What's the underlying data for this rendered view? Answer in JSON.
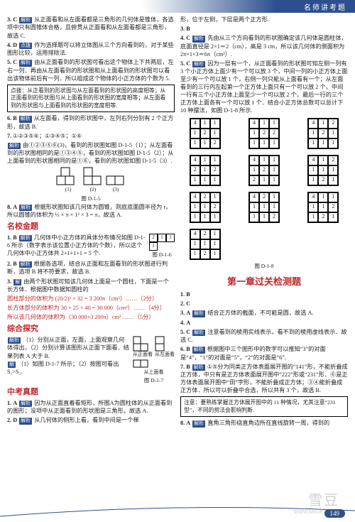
{
  "header": "名师讲考题",
  "page_number": "149",
  "colors": {
    "accent": "#2d4f8f",
    "red": "#c1272d"
  },
  "tags": {
    "analysis": "解析",
    "idea": "点拨",
    "answer": "解"
  },
  "left": {
    "items": [
      {
        "n": "3.",
        "a": "C",
        "text": "从正面看和从左面看都是三角形的几何体是锥体，各选项中只有圆锥体合格，且俯贯从正面看和从左面看都是三角形，故选 C."
      },
      {
        "n": "4.",
        "a": "D",
        "text": "作为选择题可以将立体图从三个方向看到的，对于某些图形比较，运用排除法."
      },
      {
        "n": "5.",
        "a": "C",
        "text": "由从正面看到的形状图可看出这个物体上下共两层，左右一列．再由从左面看到的形状图和从上面看到的形状图可以看出该物体前后有一列．所以组成这个物体的小正方体的个数为 5."
      }
    ],
    "box1": "点拨：从正看到的形状图与从左面看到的形状图的高度相等；从正面看到的形状图与从上面看到的形状图的宽度相等；从左面看到的形状图与上面看到的形状图的宽度相等.",
    "items2": [
      {
        "n": "6.",
        "a": "B",
        "text": "从左面看，得到的形状图中，左列右列分别有 2 个正方形，故选 B."
      },
      {
        "n": "7.",
        "a": "",
        "text": "①②③⑤⑥；①③④⑤；①⑥"
      },
      {
        "pre": "解析",
        "text": "由①②③⑤⑥(3)，看到的形状图如图 D-1-5（1）；从左面看到的形状图相同的是①③④⑤，看到的形状图如图 D-1-5（2）；从上面看到的形状图相同的是①⑥，看到的形状图如图 D-1-5（3）."
      }
    ],
    "fig15": {
      "caption": "图 D-1-5",
      "sub": [
        "(1)",
        "(2)",
        "(3)"
      ]
    },
    "items3": [
      {
        "n": "8.",
        "a": "A",
        "text": "根据形状图知该几何体为圆锥，则底底面圆半径为 r，所以圆锥的体积为 ⅓ × π × 1² × 3 = π，故选 A."
      }
    ],
    "sec1_title": "名校金题",
    "sec1": [
      {
        "n": "1.",
        "a": "B",
        "text": "几何体中小正方体的具体分布情况如图 D-1-6 所示（数字表示该位置小正方体的个数），所以这个几何体中小正方体共 2+1+1+1 = 5 个."
      },
      {
        "fig16_caption": "图 D-1-6",
        "fig16_grid": [
          [
            "2",
            "1",
            "1"
          ],
          [
            "1",
            "",
            ""
          ]
        ]
      },
      {
        "n": "2.",
        "a": "B",
        "text": "根据各选项，结合从正面和左面看到的形状图进行判断，选项 B 将不符要求，故选 B."
      },
      {
        "n": "3.",
        "a": "",
        "pre": "解",
        "text": "由两个形状图可知该几何体上面是一个圆柱，下面是一个长方体．根据图中数据知圆柱的"
      },
      {
        "calc1": "圆柱部分的体积为 (20/2)² × 32 = 3 200π（cm³）……（2分）"
      },
      {
        "calc2": "长方体部分的体积为 30 × 25 × 40 = 30 000（cm³）……（4分）"
      },
      {
        "calc3": "所以该几何体的体积为（30 000+3 200π）cm³ ……（5分）"
      }
    ],
    "sec2_title": "综合探究",
    "sec2": [
      {
        "pre": "解析",
        "text": "（1）分别从正面，左面，上面观察几何体得出，（2）分别计算该图形从正面下面看．结果列表 A 大于 B."
      },
      {
        "pre": "解",
        "text": "（1）如图 D-1-7 所示；（2）按图可看出 S₁>S₂."
      },
      {
        "fig17_caption": "图 D-1-7",
        "views": [
          "从正面看",
          "从左面看",
          "从上面看"
        ]
      }
    ],
    "sec3_title": "中考真题",
    "sec3": [
      {
        "n": "1.",
        "a": "A",
        "text": "因为从正面直着看矩形，所图A为圆柱体的从正面看到的图形；没项中从正面看到的形状图是三角形，故选 A."
      },
      {
        "n": "2.",
        "a": "D",
        "text": "从几何体的侧形上看，看到中间是一个梯"
      }
    ]
  },
  "right": {
    "top_lines": [
      "形，位于左侧，下层是两个正方形.",
      {
        "n": "3.",
        "a": "B"
      },
      {
        "n": "4.",
        "a": "C",
        "text": "先由从三个方向看到的形状图确定该几何体是圆柱体，底面直径是 2×1＝2（cm），高是 3 cm，所以该几何体的侧面积为 2π×1×3＝6π（cm²）."
      },
      {
        "n": "5.",
        "a": "C",
        "text": "因为一层有一个，从正面看到的形状图可知左侧一列有 3 个小正方体上面少有一个可以放 3 个，中间一列的小正方体上面至少有一个可以放 1 个，右侧一列只能从上面看有一个；从左面看到的三行内左起第一个正方体上面只有一个可以放 2 个，中间一行有三个小正方体上面至少一个可以放 2 个，最后一行的三个正方体上面各有一个可以放 1 个．结合小正方体总数可以总计下 10 种摆法，如图 D-1-8 所示."
      }
    ],
    "grids": [
      [
        [
          "4",
          "1",
          "1"
        ],
        [
          "1",
          "2",
          "1"
        ],
        [
          "1",
          "1",
          "2"
        ]
      ],
      [
        [
          "4",
          "1",
          "1"
        ],
        [
          "1",
          "2",
          "2"
        ],
        [
          "1",
          "1",
          "1"
        ]
      ],
      [
        [
          "4",
          "1",
          "2"
        ],
        [
          "1",
          "2",
          "1"
        ],
        [
          "1",
          "1",
          "1"
        ]
      ],
      [
        [
          "4",
          "1",
          "1"
        ],
        [
          "2",
          "1",
          "2"
        ],
        [
          "1",
          "1",
          "1"
        ]
      ],
      [
        [
          "4",
          "1",
          "1"
        ],
        [
          "1",
          "2",
          "1"
        ],
        [
          "2",
          "1",
          "1"
        ]
      ],
      [
        [
          "4",
          "1",
          "2"
        ],
        [
          "1",
          "1",
          "1"
        ],
        [
          "1",
          "2",
          "1"
        ]
      ],
      [
        [
          "4",
          "2",
          "1"
        ],
        [
          "1",
          "1",
          "2"
        ],
        [
          "1",
          "1",
          "1"
        ]
      ],
      [
        [
          "4",
          "2",
          "1"
        ],
        [
          "1",
          "1",
          "1"
        ],
        [
          "1",
          "1",
          "2"
        ]
      ],
      [
        [
          "4",
          "1",
          "1"
        ],
        [
          "1",
          "1",
          "2"
        ],
        [
          "1",
          "2",
          "1"
        ]
      ],
      [
        [
          "4",
          "2",
          "1"
        ],
        [
          "1",
          "1",
          "1"
        ],
        [
          "1",
          "2",
          "1"
        ]
      ]
    ],
    "grids_caption": "图 D-1-8",
    "chapter": "第一章过关检测题",
    "chap_items": [
      {
        "n": "1.",
        "a": "B"
      },
      {
        "n": "2.",
        "a": "C"
      },
      {
        "n": "3.",
        "a": "A",
        "text": "结合正方体的截面，不可能是圆，故选 A."
      },
      {
        "n": "4.",
        "a": "A"
      },
      {
        "n": "5.",
        "a": "C",
        "text": "注意看到的棱用实线表示，看不到的棱用虚线表示．故选 C."
      },
      {
        "n": "6.",
        "a": "B",
        "text": "根据图中三个图形中的数字可以推知“3”的对面是“4”，“1”的对面是“5”，“2”的对面是“6”."
      },
      {
        "n": "7.",
        "a": "B",
        "text": "①⑤分为同类正方体表面展开图的“141”形，不能折叠成正方体，中只有是正方体表面展开图中“222”形或“231”形．⑥是正方体表面展开图中“田”字形，不能折叠成正方体；③④能折叠成正方体．所以可以折叠中合选，所以共有 3 个，故选 B."
      }
    ],
    "box2": "注意：要熟练掌握正方体展开图中的 11 种情况，尤其注意“231型”，不同的剪法会影响判断.",
    "chap_item8": {
      "n": "8.",
      "a": "A",
      "text": "直角三角形绕直角边所在直线旋转一周，得到的"
    }
  }
}
